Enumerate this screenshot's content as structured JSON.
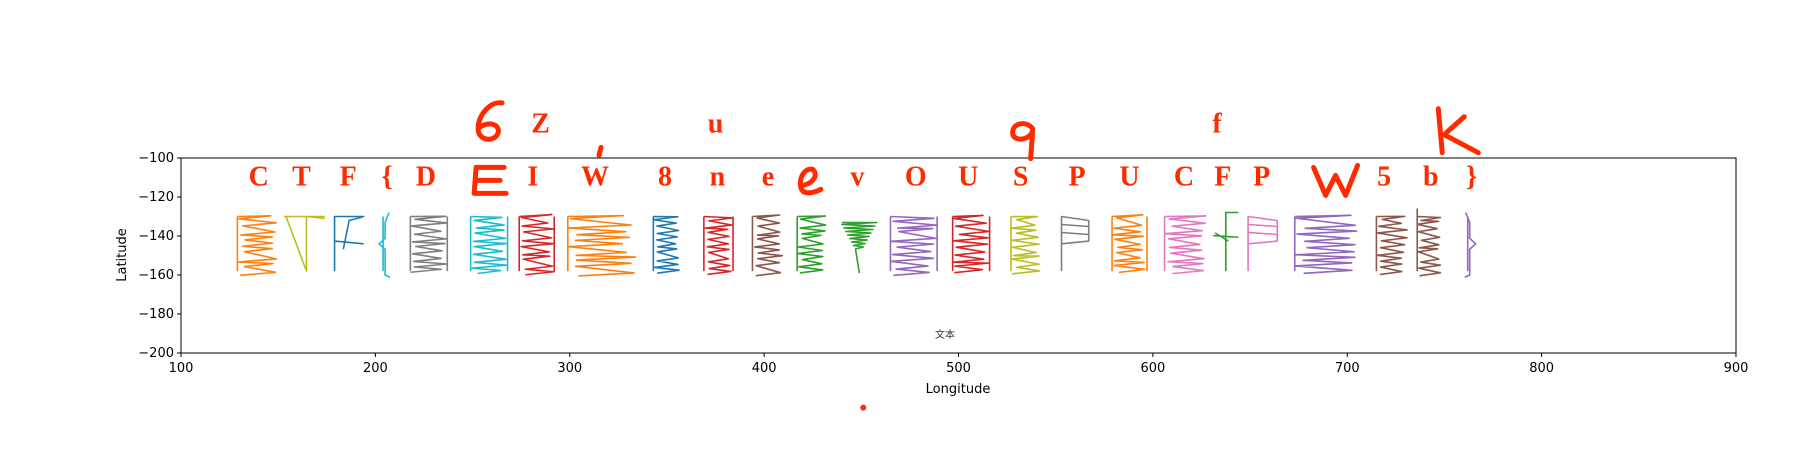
{
  "chart_data": {
    "type": "line",
    "xlabel": "Longitude",
    "ylabel": "Latitude",
    "xlim": [
      100,
      900
    ],
    "ylim": [
      -200,
      -100
    ],
    "x_ticks": [
      "100",
      "200",
      "300",
      "400",
      "500",
      "600",
      "700",
      "800",
      "900"
    ],
    "y_ticks": [
      "−100",
      "−120",
      "−140",
      "−160",
      "−180",
      "−200"
    ],
    "annotation": "文本",
    "top_row_letters": [
      {
        "text": "Z",
        "x": 285,
        "y": -87
      },
      {
        "text": "u",
        "x": 375,
        "y": -87
      },
      {
        "text": "f",
        "x": 633,
        "y": -87
      }
    ],
    "main_row_letters": [
      {
        "text": "C",
        "x": 140,
        "y": -114
      },
      {
        "text": "T",
        "x": 162,
        "y": -114
      },
      {
        "text": "F",
        "x": 186,
        "y": -114
      },
      {
        "text": "{",
        "x": 206,
        "y": -114
      },
      {
        "text": "D",
        "x": 226,
        "y": -114
      },
      {
        "text": "I",
        "x": 281,
        "y": -114
      },
      {
        "text": "W",
        "x": 313,
        "y": -114
      },
      {
        "text": "8",
        "x": 349,
        "y": -114
      },
      {
        "text": "n",
        "x": 376,
        "y": -114
      },
      {
        "text": "e",
        "x": 402,
        "y": -114
      },
      {
        "text": "v",
        "x": 448,
        "y": -114
      },
      {
        "text": "O",
        "x": 478,
        "y": -114
      },
      {
        "text": "U",
        "x": 505,
        "y": -114
      },
      {
        "text": "S",
        "x": 532,
        "y": -114
      },
      {
        "text": "P",
        "x": 561,
        "y": -114
      },
      {
        "text": "U",
        "x": 588,
        "y": -114
      },
      {
        "text": "C",
        "x": 616,
        "y": -114
      },
      {
        "text": "F",
        "x": 636,
        "y": -114
      },
      {
        "text": "P",
        "x": 656,
        "y": -114
      },
      {
        "text": "5",
        "x": 719,
        "y": -114
      },
      {
        "text": "b",
        "x": 743,
        "y": -114
      },
      {
        "text": "}",
        "x": 764,
        "y": -114
      }
    ],
    "handwritten_marks": [
      {
        "text": "6",
        "x": 258,
        "y": -82
      },
      {
        "text": "E",
        "x": 258,
        "y": -112
      },
      {
        "text": "e",
        "x": 423,
        "y": -112
      },
      {
        "text": "9",
        "x": 533,
        "y": -88
      },
      {
        "text": "W",
        "x": 694,
        "y": -112
      },
      {
        "text": "K",
        "x": 753,
        "y": -86
      }
    ],
    "dot": {
      "x": 451,
      "y": -228
    },
    "glyphs": [
      {
        "char": "C",
        "x0": 129,
        "x1": 150,
        "color": "#ff7f0e"
      },
      {
        "char": "T",
        "x0": 153,
        "x1": 174,
        "color": "#bcbd22"
      },
      {
        "char": "F",
        "x0": 179,
        "x1": 194,
        "color": "#1f77b4"
      },
      {
        "char": "{",
        "x0": 200,
        "x1": 210,
        "color": "#17becf"
      },
      {
        "char": "D",
        "x0": 218,
        "x1": 237,
        "color": "#7f7f7f"
      },
      {
        "char": "E",
        "x0": 249,
        "x1": 268,
        "color": "#17becf"
      },
      {
        "char": "Z",
        "x0": 274,
        "x1": 292,
        "color": "#d62728"
      },
      {
        "char": "W",
        "x0": 299,
        "x1": 334,
        "color": "#ff7f0e"
      },
      {
        "char": "8",
        "x0": 343,
        "x1": 357,
        "color": "#1f77b4"
      },
      {
        "char": "n",
        "x0": 369,
        "x1": 384,
        "color": "#d62728"
      },
      {
        "char": "e",
        "x0": 394,
        "x1": 410,
        "color": "#8c564b"
      },
      {
        "char": "Q",
        "x0": 417,
        "x1": 432,
        "color": "#2ca02c"
      },
      {
        "char": "v",
        "x0": 440,
        "x1": 458,
        "color": "#2ca02c"
      },
      {
        "char": "O",
        "x0": 465,
        "x1": 489,
        "color": "#9467bd"
      },
      {
        "char": "U",
        "x0": 497,
        "x1": 516,
        "color": "#d62728"
      },
      {
        "char": "S",
        "x0": 527,
        "x1": 542,
        "color": "#bcbd22"
      },
      {
        "char": "P",
        "x0": 553,
        "x1": 567,
        "color": "#7f7f7f"
      },
      {
        "char": "U",
        "x0": 579,
        "x1": 597,
        "color": "#ff7f0e"
      },
      {
        "char": "C",
        "x0": 606,
        "x1": 628,
        "color": "#e377c2"
      },
      {
        "char": "f",
        "x0": 631,
        "x1": 644,
        "color": "#2ca02c"
      },
      {
        "char": "P",
        "x0": 649,
        "x1": 664,
        "color": "#e377c2"
      },
      {
        "char": "W",
        "x0": 673,
        "x1": 708,
        "color": "#9467bd"
      },
      {
        "char": "5",
        "x0": 715,
        "x1": 731,
        "color": "#8c564b"
      },
      {
        "char": "b",
        "x0": 736,
        "x1": 748,
        "color": "#8c564b"
      },
      {
        "char": "}",
        "x0": 759,
        "x1": 767,
        "color": "#9467bd"
      }
    ]
  }
}
